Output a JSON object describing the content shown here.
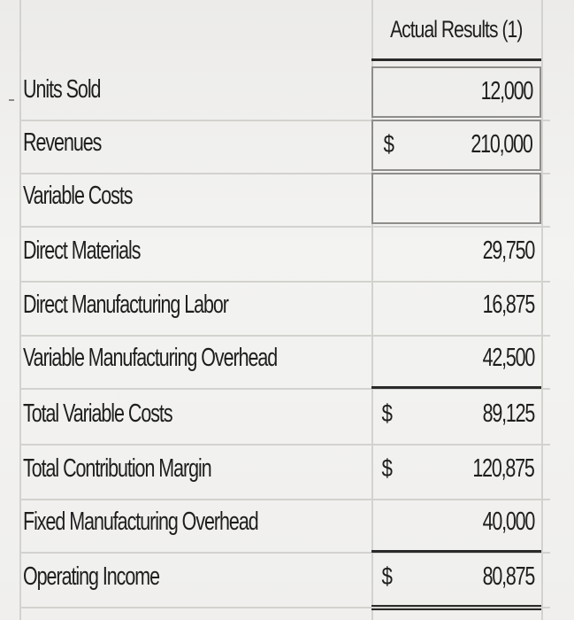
{
  "header": {
    "column_title": "Actual Results (1)"
  },
  "rows": [
    {
      "label": "Units Sold",
      "currency": "",
      "value": "12,000"
    },
    {
      "label": "Revenues",
      "currency": "$",
      "value": "210,000"
    },
    {
      "label": "Variable Costs",
      "currency": "",
      "value": ""
    },
    {
      "label": "Direct Materials",
      "currency": "",
      "value": "29,750"
    },
    {
      "label": "Direct Manufacturing Labor",
      "currency": "",
      "value": "16,875"
    },
    {
      "label": "Variable Manufacturing Overhead",
      "currency": "",
      "value": "42,500"
    },
    {
      "label": "Total Variable Costs",
      "currency": "$",
      "value": "89,125"
    },
    {
      "label": "Total Contribution Margin",
      "currency": "$",
      "value": "120,875"
    },
    {
      "label": "Fixed Manufacturing Overhead",
      "currency": "",
      "value": "40,000"
    },
    {
      "label": "Operating Income",
      "currency": "$",
      "value": "80,875"
    }
  ]
}
